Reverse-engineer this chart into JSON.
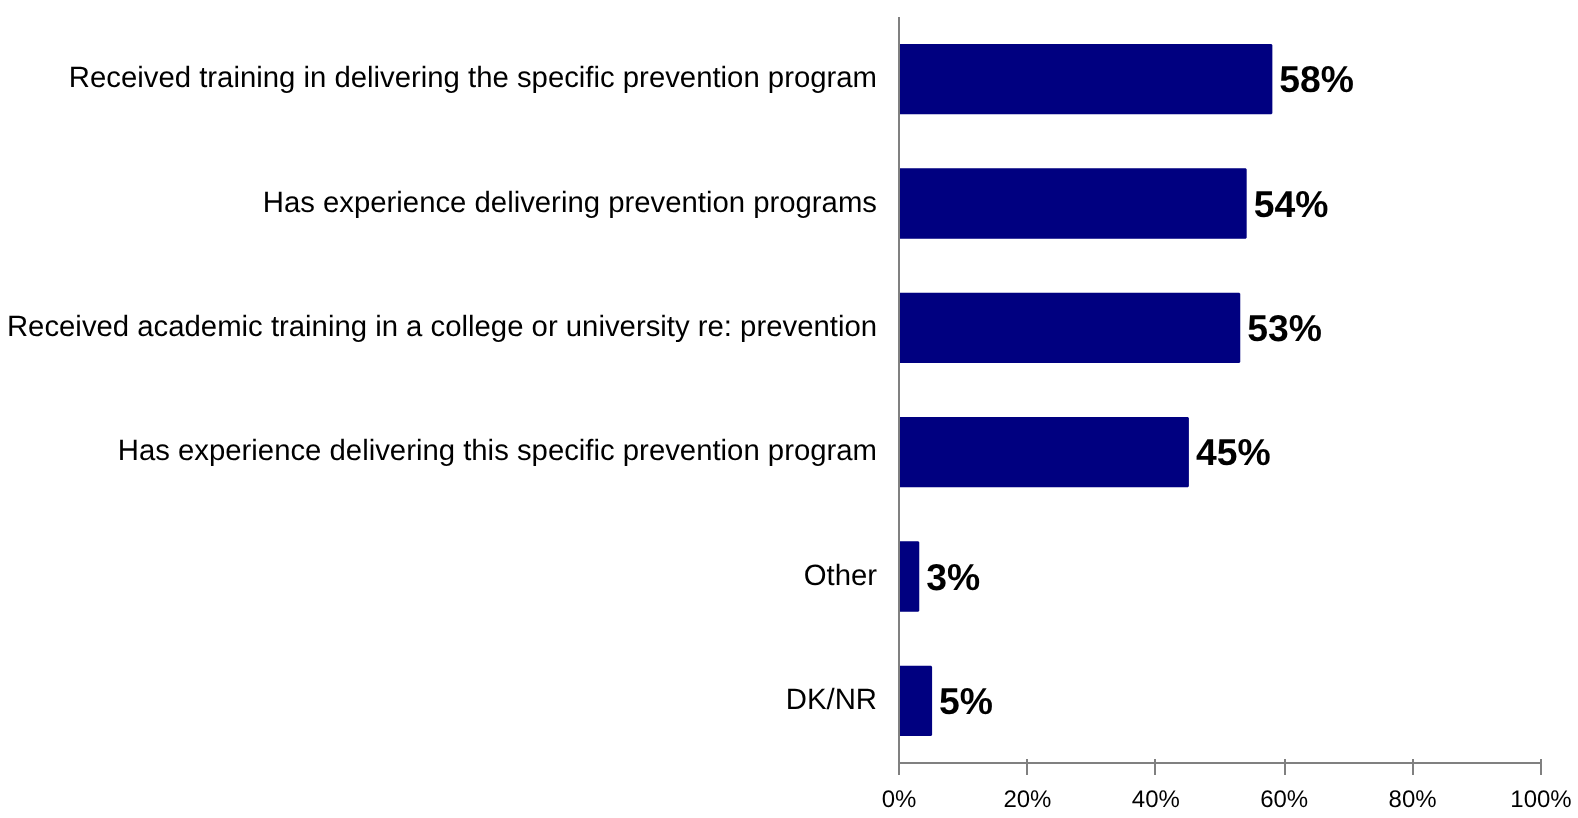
{
  "chart_data": {
    "type": "bar",
    "orientation": "horizontal",
    "categories": [
      "Received training in delivering the specific prevention program",
      "Has experience delivering prevention programs",
      "Received academic training in a college or university re: prevention",
      "Has experience delivering this specific prevention program",
      "Other",
      "DK/NR"
    ],
    "values": [
      58,
      54,
      53,
      45,
      3,
      5
    ],
    "value_labels": [
      "58%",
      "54%",
      "53%",
      "45%",
      "3%",
      "5%"
    ],
    "color": "#000080",
    "xlim": [
      0,
      100
    ],
    "xticks": [
      {
        "value": 0,
        "label": "0%"
      },
      {
        "value": 20,
        "label": "20%"
      },
      {
        "value": 40,
        "label": "40%"
      },
      {
        "value": 60,
        "label": "60%"
      },
      {
        "value": 80,
        "label": "80%"
      },
      {
        "value": 100,
        "label": "100%"
      }
    ],
    "grid": false
  }
}
